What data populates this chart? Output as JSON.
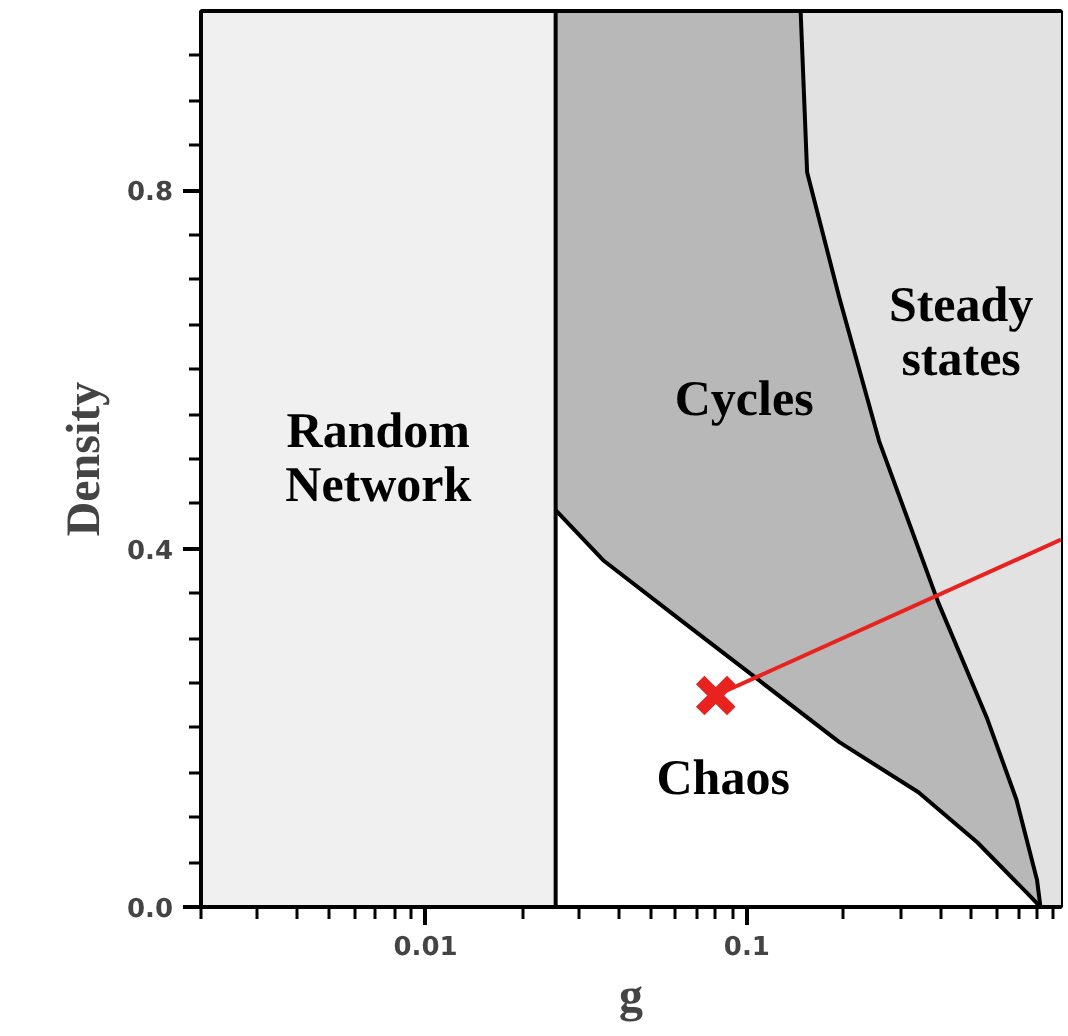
{
  "chart_data": {
    "type": "area",
    "xlabel": "g",
    "ylabel": "Density",
    "log": "x",
    "xlim": [
      0.002,
      0.95
    ],
    "ylim": [
      0,
      1
    ],
    "xticks": [
      {
        "value": 0.002,
        "label": null
      },
      {
        "value": 0.003,
        "label": null
      },
      {
        "value": 0.004,
        "label": null
      },
      {
        "value": 0.005,
        "label": null
      },
      {
        "value": 0.006,
        "label": null
      },
      {
        "value": 0.007,
        "label": null
      },
      {
        "value": 0.008,
        "label": null
      },
      {
        "value": 0.009,
        "label": null
      },
      0.01,
      {
        "value": 0.02,
        "label": null
      },
      {
        "value": 0.03,
        "label": null
      },
      {
        "value": 0.04,
        "label": null
      },
      {
        "value": 0.05,
        "label": null
      },
      {
        "value": 0.06,
        "label": null
      },
      {
        "value": 0.07,
        "label": null
      },
      {
        "value": 0.08,
        "label": null
      },
      {
        "value": 0.09,
        "label": null
      },
      0.1,
      {
        "value": 0.2,
        "label": null
      },
      {
        "value": 0.3,
        "label": null
      },
      {
        "value": 0.4,
        "label": null
      },
      {
        "value": 0.5,
        "label": null
      },
      {
        "value": 0.6,
        "label": null
      },
      {
        "value": 0.7,
        "label": null
      },
      {
        "value": 0.8,
        "label": null
      },
      {
        "value": 0.9,
        "label": null
      }
    ],
    "yticks": [
      {
        "value": 0,
        "label": "0.0"
      },
      {
        "value": 0.05,
        "label": null
      },
      {
        "value": 0.1,
        "label": null
      },
      {
        "value": 0.15,
        "label": null
      },
      {
        "value": 0.2,
        "label": null
      },
      {
        "value": 0.25,
        "label": null
      },
      {
        "value": 0.3,
        "label": null
      },
      {
        "value": 0.35,
        "label": null
      },
      {
        "value": 0.4,
        "label": "0.4"
      },
      {
        "value": 0.45,
        "label": null
      },
      {
        "value": 0.5,
        "label": null
      },
      {
        "value": 0.55,
        "label": null
      },
      {
        "value": 0.6,
        "label": null
      },
      {
        "value": 0.65,
        "label": null
      },
      {
        "value": 0.7,
        "label": null
      },
      {
        "value": 0.75,
        "label": null
      },
      {
        "value": 0.8,
        "label": "0.8"
      },
      {
        "value": 0.85,
        "label": null
      },
      {
        "value": 0.9,
        "label": null
      },
      {
        "value": 0.95,
        "label": null
      }
    ],
    "series": [
      {
        "name": "Steady\nstates",
        "color": "#e2e2e2",
        "x": [
          0.147,
          0.95
        ],
        "values": [
          1,
          1
        ]
      },
      {
        "name": "Cycles",
        "color": "#b8b8b8",
        "x": [
          0.0254,
          0.147,
          0.154,
          0.194,
          0.258,
          0.394,
          0.56,
          0.69,
          0.8,
          0.82
        ],
        "values": [
          1,
          1,
          0.82,
          0.68,
          0.52,
          0.34,
          0.21,
          0.12,
          0.03,
          0
        ]
      },
      {
        "name": "Chaos",
        "color": "#ffffff",
        "x": [
          0.0254,
          0.0357,
          0.0628,
          0.11,
          0.194,
          0.342,
          0.522,
          0.743,
          0.82
        ],
        "values": [
          0.443,
          0.387,
          0.319,
          0.252,
          0.184,
          0.128,
          0.072,
          0.016,
          0
        ]
      },
      {
        "name": "Random\nNetwork",
        "color": "#f0f0f0",
        "x": [
          0.002,
          0.0254
        ],
        "values": [
          1,
          1
        ]
      },
      {
        "type": "line",
        "color": "#000000",
        "x": [
          0.0254,
          0.0254
        ],
        "values": [
          0,
          1
        ]
      },
      {
        "type": "line",
        "color": "#e8231f",
        "x": [
          0.08,
          0.95
        ],
        "values": [
          0.236,
          0.41
        ]
      },
      {
        "type": "scatter",
        "color": "#e8231f",
        "marker": "cross",
        "x": [
          0.08
        ],
        "values": [
          0.236
        ]
      }
    ]
  }
}
